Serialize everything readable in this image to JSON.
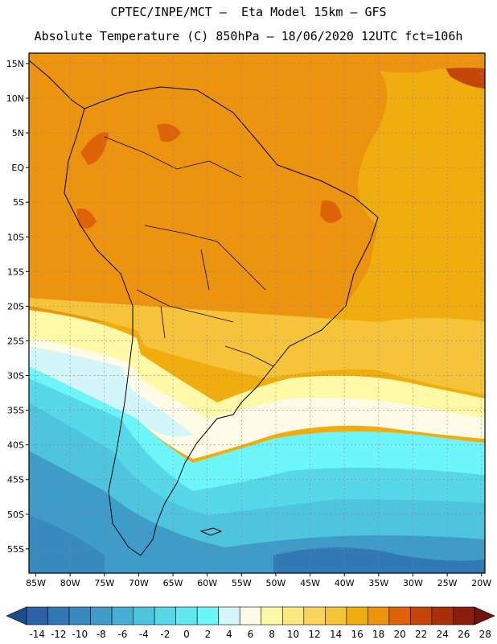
{
  "header": {
    "line1": "CPTEC/INPE/MCT –  Eta Model 15km – GFS",
    "line2": "Absolute Temperature (C) 850hPa – 18/06/2020 12UTC fct=106h"
  },
  "map": {
    "lat_labels": [
      "15N",
      "10N",
      "5N",
      "EQ",
      "5S",
      "10S",
      "15S",
      "20S",
      "25S",
      "30S",
      "35S",
      "40S",
      "45S",
      "50S",
      "55S"
    ],
    "lon_labels": [
      "85W",
      "80W",
      "75W",
      "70W",
      "65W",
      "60W",
      "55W",
      "50W",
      "45W",
      "40W",
      "35W",
      "30W",
      "25W",
      "20W"
    ],
    "lon_range": [
      -86,
      -19.5
    ],
    "lat_range": [
      -58.5,
      16.5
    ]
  },
  "colorbar": {
    "labels": [
      "-14",
      "-12",
      "-10",
      "-8",
      "-6",
      "-4",
      "-2",
      "0",
      "2",
      "4",
      "6",
      "8",
      "10",
      "12",
      "14",
      "16",
      "18",
      "20",
      "22",
      "24",
      "26",
      "28"
    ],
    "colors": [
      "#1c4c8c",
      "#2a62a4",
      "#3079b4",
      "#3789be",
      "#3f9cc8",
      "#46afd4",
      "#4fc4de",
      "#57d8e8",
      "#5fe8f0",
      "#6cf6fa",
      "#d3f6fa",
      "#fffbe6",
      "#fff8a6",
      "#fde880",
      "#f9d45e",
      "#f5c43a",
      "#f0ad10",
      "#ec9310",
      "#dd6208",
      "#c44608",
      "#a83008",
      "#8a1e0e",
      "#6e1410"
    ]
  }
}
